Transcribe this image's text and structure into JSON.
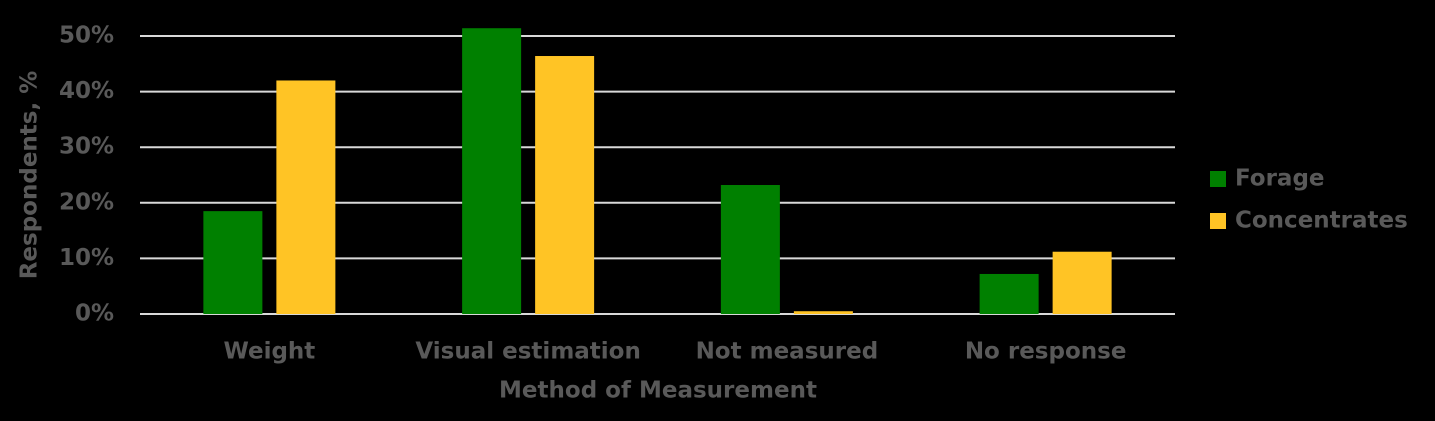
{
  "chart_data": {
    "type": "bar",
    "x_label": "Method of Measurement",
    "y_label": "Respondents, %",
    "categories": [
      "Weight",
      "Visual estimation",
      "Not measured",
      "No response"
    ],
    "series": [
      {
        "name": "Forage",
        "color": "#008000",
        "values": [
          18.5,
          51.4,
          23.2,
          7.2
        ]
      },
      {
        "name": "Concentrates",
        "color": "#ffc425",
        "values": [
          42,
          46.4,
          0.5,
          11.2
        ]
      }
    ],
    "ylim": [
      0,
      50
    ],
    "yticks": [
      {
        "value": 0,
        "label": "0%"
      },
      {
        "value": 10,
        "label": "10%"
      },
      {
        "value": 20,
        "label": "20%"
      },
      {
        "value": 30,
        "label": "30%"
      },
      {
        "value": 40,
        "label": "40%"
      },
      {
        "value": 50,
        "label": "50%"
      }
    ],
    "grid": true,
    "legend": "right"
  }
}
